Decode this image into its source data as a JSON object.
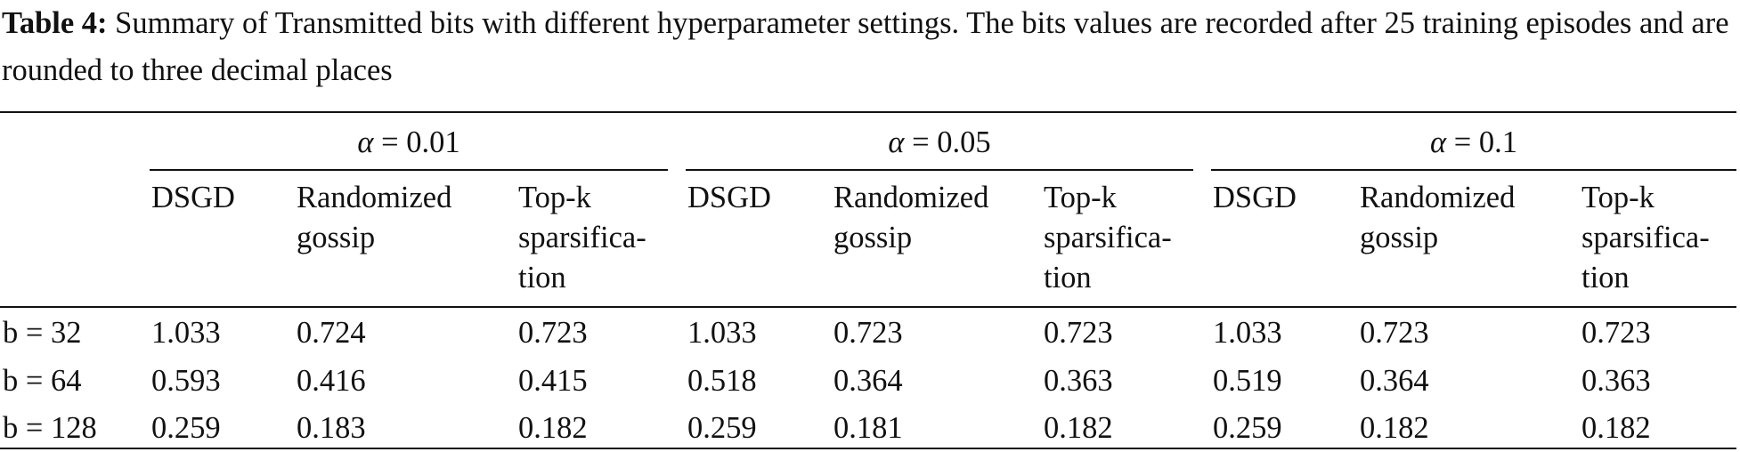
{
  "caption": {
    "label": "Table 4:",
    "text": " Summary of Transmitted bits with different hyperparameter settings. The bits values are recorded after 25 training episodes and are rounded to three decimal places"
  },
  "groups": [
    {
      "symbol": "α",
      "value": "= 0.01"
    },
    {
      "symbol": "α",
      "value": "= 0.05"
    },
    {
      "symbol": "α",
      "value": "= 0.1"
    }
  ],
  "subheaders": [
    [
      "DSGD"
    ],
    [
      "Randomized",
      "gossip"
    ],
    [
      "Top-k",
      "sparsifica-",
      "tion"
    ]
  ],
  "rows": [
    {
      "label": "b = 32",
      "values": [
        "1.033",
        "0.724",
        "0.723",
        "1.033",
        "0.723",
        "0.723",
        "1.033",
        "0.723",
        "0.723"
      ]
    },
    {
      "label": "b = 64",
      "values": [
        "0.593",
        "0.416",
        "0.415",
        "0.518",
        "0.364",
        "0.363",
        "0.519",
        "0.364",
        "0.363"
      ]
    },
    {
      "label": "b = 128",
      "values": [
        "0.259",
        "0.183",
        "0.182",
        "0.259",
        "0.181",
        "0.182",
        "0.259",
        "0.182",
        "0.182"
      ]
    }
  ]
}
